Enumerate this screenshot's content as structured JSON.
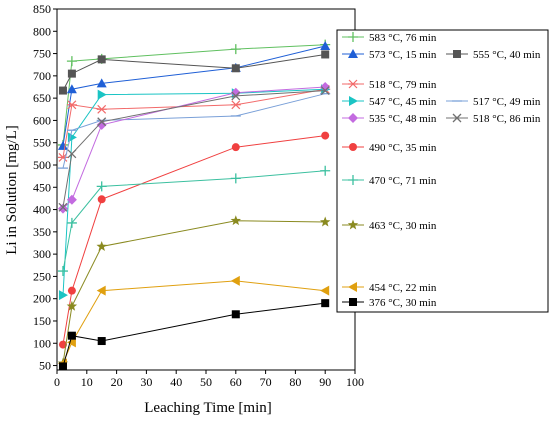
{
  "chart_data": {
    "type": "line",
    "title": "",
    "xlabel": "Leaching Time [min]",
    "ylabel": "Li in Solution [mg/L]",
    "xlim": [
      0,
      100
    ],
    "ylim": [
      40,
      850
    ],
    "xticks": [
      0,
      10,
      20,
      30,
      40,
      50,
      60,
      70,
      80,
      90,
      100
    ],
    "yticks": [
      50,
      100,
      150,
      200,
      250,
      300,
      350,
      400,
      450,
      500,
      550,
      600,
      650,
      700,
      750,
      800,
      850
    ],
    "grid": false,
    "legend_position": "right",
    "series": [
      {
        "name": "583 °C, 76 min",
        "color": "#60c060",
        "marker": "plus",
        "x": [
          2,
          5,
          15,
          60,
          90
        ],
        "y": [
          545,
          733,
          738,
          760,
          770
        ]
      },
      {
        "name": "573 °C, 15 min",
        "color": "#1f5fd6",
        "marker": "triangle-up",
        "x": [
          2,
          5,
          15,
          60,
          90
        ],
        "y": [
          543,
          670,
          683,
          718,
          767
        ]
      },
      {
        "name": "555 °C, 40 min",
        "color": "#555555",
        "marker": "square",
        "x": [
          2,
          5,
          15,
          60,
          90
        ],
        "y": [
          667,
          705,
          737,
          717,
          748
        ]
      },
      {
        "name": "518 °C, 79 min",
        "color": "#f26a6a",
        "marker": "asterisk",
        "x": [
          2,
          5,
          15,
          60,
          90
        ],
        "y": [
          517,
          635,
          625,
          635,
          670
        ]
      },
      {
        "name": "547 °C, 45 min",
        "color": "#1ac4c4",
        "marker": "triangle-right",
        "x": [
          2,
          5,
          15,
          60,
          90
        ],
        "y": [
          208,
          562,
          658,
          661,
          670
        ]
      },
      {
        "name": "517 °C, 49 min",
        "color": "#7aa0d8",
        "marker": "line",
        "x": [
          2,
          5,
          15,
          60,
          90
        ],
        "y": [
          493,
          578,
          600,
          610,
          660
        ]
      },
      {
        "name": "535 °C, 48 min",
        "color": "#c36be0",
        "marker": "diamond",
        "x": [
          2,
          5,
          15,
          60,
          90
        ],
        "y": [
          402,
          422,
          590,
          662,
          675
        ]
      },
      {
        "name": "518 °C, 86 min",
        "color": "#707070",
        "marker": "x",
        "x": [
          2,
          5,
          15,
          60,
          90
        ],
        "y": [
          405,
          525,
          597,
          655,
          667
        ]
      },
      {
        "name": "490 °C, 35 min",
        "color": "#f04040",
        "marker": "circle",
        "x": [
          2,
          5,
          15,
          60,
          90
        ],
        "y": [
          97,
          218,
          423,
          540,
          566
        ]
      },
      {
        "name": "470 °C, 71 min",
        "color": "#3cc0a0",
        "marker": "plus",
        "x": [
          2,
          5,
          15,
          60,
          90
        ],
        "y": [
          262,
          370,
          452,
          470,
          487
        ]
      },
      {
        "name": "463 °C, 30 min",
        "color": "#8a8a20",
        "marker": "star",
        "x": [
          2,
          5,
          15,
          60,
          90
        ],
        "y": [
          55,
          183,
          317,
          375,
          372
        ]
      },
      {
        "name": "454 °C, 22 min",
        "color": "#e0a010",
        "marker": "triangle-left",
        "x": [
          2,
          5,
          15,
          60,
          90
        ],
        "y": [
          55,
          102,
          218,
          240,
          218
        ]
      },
      {
        "name": "376 °C, 30 min",
        "color": "#000000",
        "marker": "square",
        "x": [
          2,
          5,
          15,
          60,
          90
        ],
        "y": [
          48,
          117,
          105,
          165,
          190
        ]
      }
    ]
  }
}
